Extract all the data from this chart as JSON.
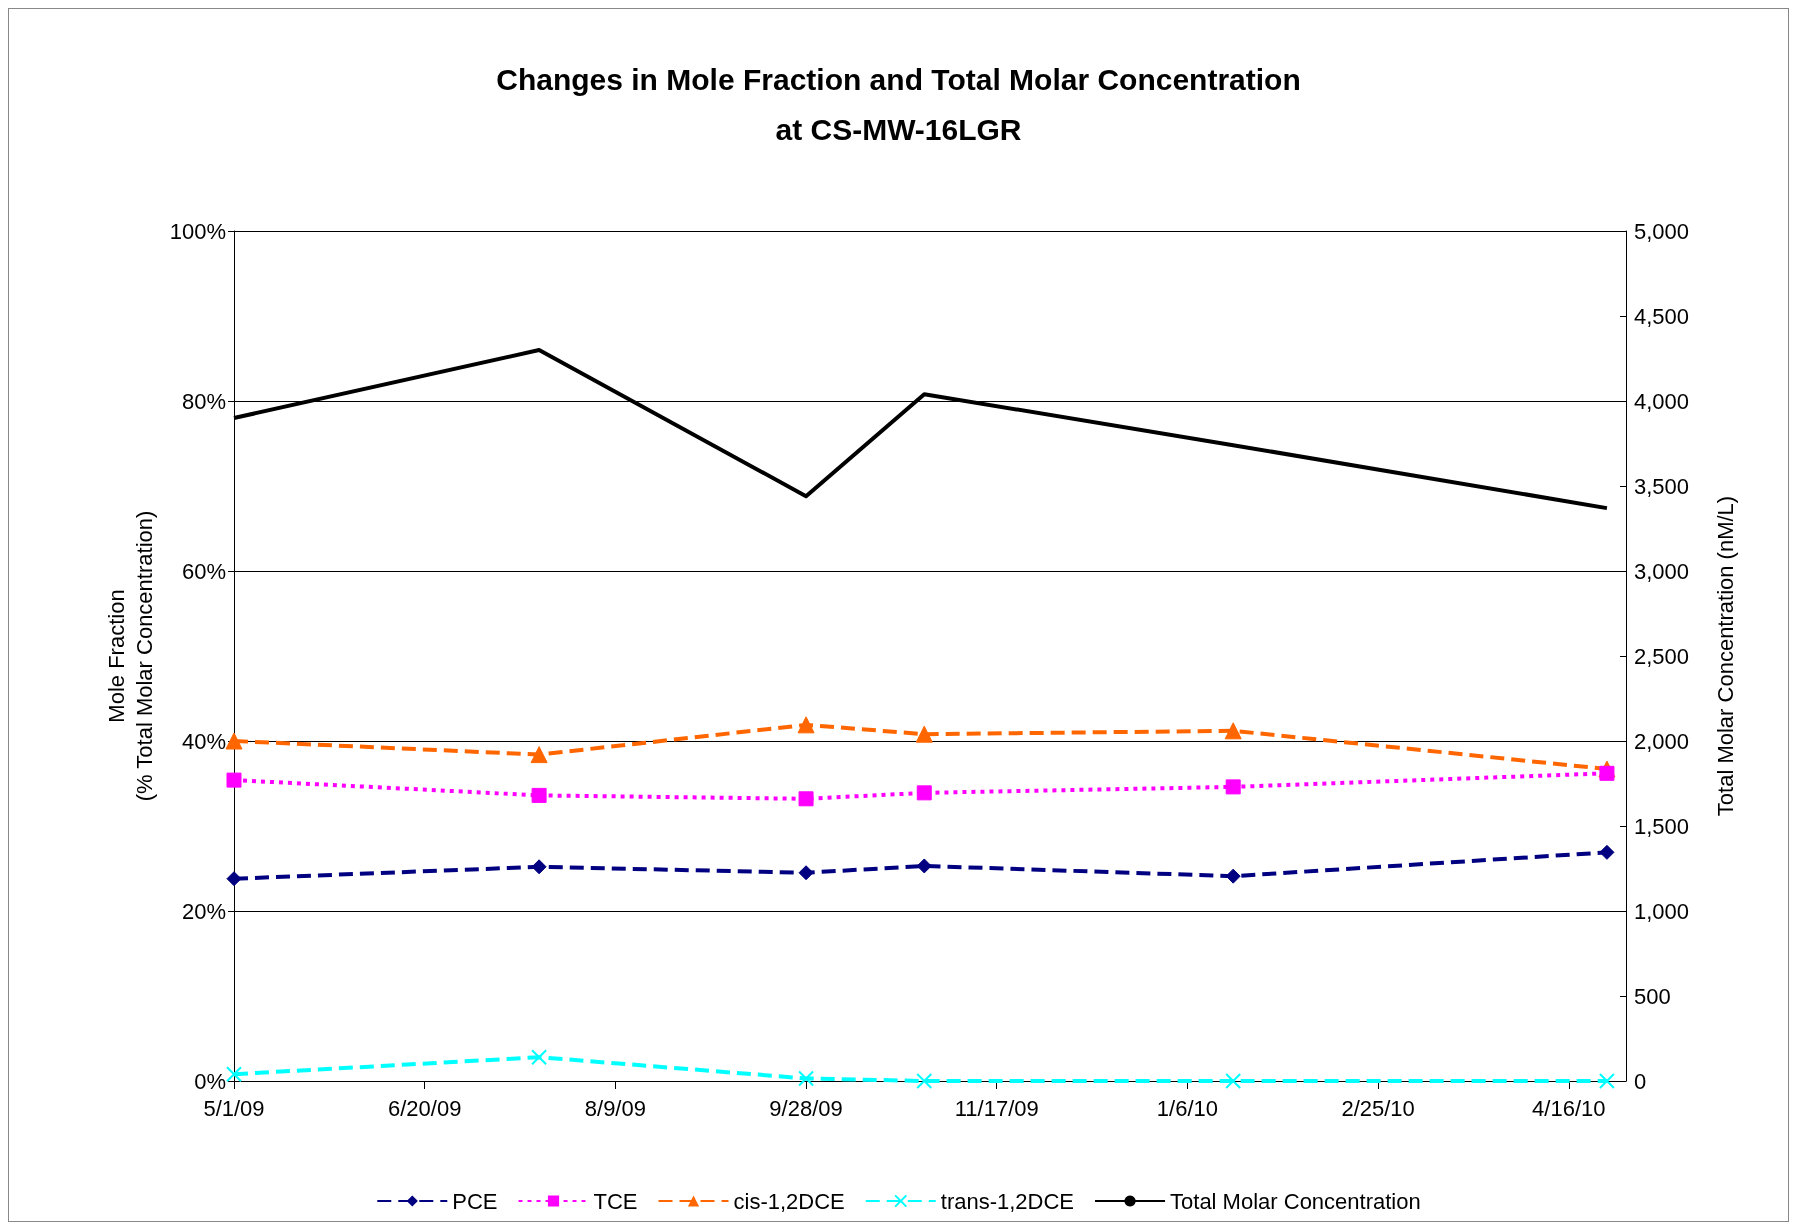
{
  "chart_data": {
    "type": "line",
    "title": "Changes in Mole Fraction and Total Molar Concentration\nat CS-MW-16LGR",
    "ylabel": "Mole Fraction\n(% Total Molar Concentration)",
    "y2label": "Total Molar Concentration (nM/L)",
    "x": [
      "2009-05-01",
      "2009-07-20",
      "2009-09-28",
      "2009-10-29",
      "2010-01-18",
      "2010-04-26"
    ],
    "xlim": [
      "2009-05-01",
      "2010-05-01"
    ],
    "xticks": [
      {
        "value": "2009-05-01",
        "label": "5/1/09"
      },
      {
        "value": "2009-06-20",
        "label": "6/20/09"
      },
      {
        "value": "2009-08-09",
        "label": "8/9/09"
      },
      {
        "value": "2009-09-28",
        "label": "9/28/09"
      },
      {
        "value": "2009-11-17",
        "label": "11/17/09"
      },
      {
        "value": "2010-01-06",
        "label": "1/6/10"
      },
      {
        "value": "2010-02-25",
        "label": "2/25/10"
      },
      {
        "value": "2010-04-16",
        "label": "4/16/10"
      }
    ],
    "ylim": [
      0,
      100
    ],
    "yticks": [
      {
        "value": 0,
        "label": "0%"
      },
      {
        "value": 20,
        "label": "20%"
      },
      {
        "value": 40,
        "label": "40%"
      },
      {
        "value": 60,
        "label": "60%"
      },
      {
        "value": 80,
        "label": "80%"
      },
      {
        "value": 100,
        "label": "100%"
      }
    ],
    "y2lim": [
      0,
      5000
    ],
    "y2ticks": [
      0,
      500,
      {
        "value": 1000,
        "label": "1,000"
      },
      {
        "value": 1500,
        "label": "1,500"
      },
      {
        "value": 2000,
        "label": "2,000"
      },
      {
        "value": 2500,
        "label": "2,500"
      },
      {
        "value": 3000,
        "label": "3,000"
      },
      {
        "value": 3500,
        "label": "3,500"
      },
      {
        "value": 4000,
        "label": "4,000"
      },
      {
        "value": 4500,
        "label": "4,500"
      },
      {
        "value": 5000,
        "label": "5,000"
      }
    ],
    "grid": "y",
    "legend": "bottom",
    "series": [
      {
        "name": "PCE",
        "color": "#000080",
        "marker": "diamond",
        "line_style": "dashed",
        "values": [
          23.8,
          25.2,
          24.5,
          25.3,
          24.1,
          26.9
        ]
      },
      {
        "name": "TCE",
        "color": "#ff00ff",
        "marker": "square",
        "line_style": "dotted",
        "values": [
          35.4,
          33.6,
          33.2,
          33.9,
          34.6,
          36.2
        ]
      },
      {
        "name": "cis-1,2DCE",
        "color": "#ff6600",
        "marker": "triangle",
        "line_style": "dashed",
        "values": [
          40.0,
          38.4,
          41.9,
          40.8,
          41.2,
          36.7
        ]
      },
      {
        "name": "trans-1,2DCE",
        "color": "#00ffff",
        "marker": "cross",
        "line_style": "dashed",
        "values": [
          0.8,
          2.8,
          0.3,
          0,
          0,
          0
        ]
      },
      {
        "name": "Total Molar Concentration",
        "color": "#000000",
        "marker": "none",
        "line_style": "solid",
        "axis": "y2",
        "values": [
          3900,
          4300,
          3440,
          4040,
          3740,
          3370
        ]
      }
    ]
  }
}
